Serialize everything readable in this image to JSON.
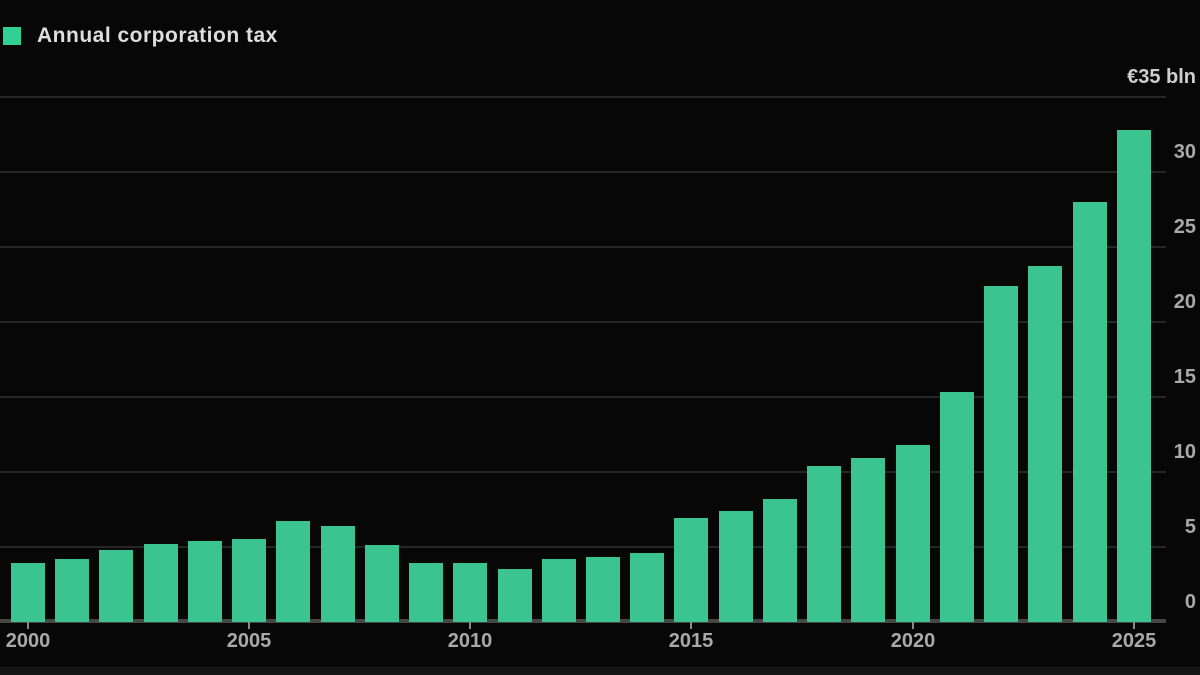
{
  "legend": {
    "label": "Annual corporation tax",
    "swatch_color": "#31d094"
  },
  "axis_unit_label": "€35 bln",
  "chart_data": {
    "type": "bar",
    "title": "",
    "series_name": "Annual corporation tax",
    "x": [
      2000,
      2001,
      2002,
      2003,
      2004,
      2005,
      2006,
      2007,
      2008,
      2009,
      2010,
      2011,
      2012,
      2013,
      2014,
      2015,
      2016,
      2017,
      2018,
      2019,
      2020,
      2021,
      2022,
      2023,
      2024,
      2025
    ],
    "values": [
      3.9,
      4.2,
      4.8,
      5.2,
      5.4,
      5.5,
      6.7,
      6.4,
      5.1,
      3.9,
      3.9,
      3.5,
      4.2,
      4.3,
      4.6,
      6.9,
      7.4,
      8.2,
      10.4,
      10.9,
      11.8,
      15.3,
      22.4,
      23.7,
      28.0,
      32.8
    ],
    "ylabel": "€ bln",
    "ylim": [
      0,
      35
    ],
    "yticks": [
      0,
      5,
      10,
      15,
      20,
      25,
      30,
      35
    ],
    "ytick_labels": [
      "0",
      "5",
      "10",
      "15",
      "20",
      "25",
      "30",
      "€35 bln"
    ],
    "xticks": [
      2000,
      2005,
      2010,
      2015,
      2020,
      2025
    ],
    "grid": "horizontal",
    "legend_position": "top-left",
    "bar_color": "#3bc48f",
    "gridline_color": "#262626",
    "axis_line_color": "#464646",
    "tick_label_color": "#a9a9a9",
    "background_color": "#070707"
  }
}
